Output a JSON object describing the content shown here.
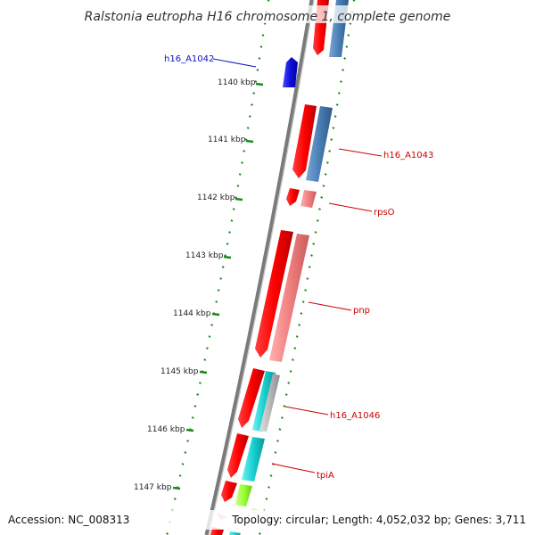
{
  "title": "Ralstonia eutropha H16 chromosome 1, complete genome",
  "accession": "Accession: NC_008313",
  "topology": "Topology: circular; Length: 4,052,032 bp; Genes: 3,711",
  "ticks": [
    {
      "label": "1140 kbp"
    },
    {
      "label": "1141 kbp"
    },
    {
      "label": "1142 kbp"
    },
    {
      "label": "1143 kbp"
    },
    {
      "label": "1144 kbp"
    },
    {
      "label": "1145 kbp"
    },
    {
      "label": "1146 kbp"
    },
    {
      "label": "1147 kbp"
    }
  ],
  "gene_labels": [
    {
      "name": "h16_A1042",
      "color": "#1010cc"
    },
    {
      "name": "h16_A1043",
      "color": "#cc0000"
    },
    {
      "name": "rpsO",
      "color": "#cc0000"
    },
    {
      "name": "pnp",
      "color": "#cc0000"
    },
    {
      "name": "h16_A1046",
      "color": "#cc0000"
    },
    {
      "name": "tpiA",
      "color": "#cc0000"
    }
  ],
  "colors": {
    "backbone": "#808080",
    "gene_red": "#ff0000",
    "gene_blue": "#1010dd",
    "cds_steelblue": "#4a7fb5",
    "cds_salmon": "#f08080",
    "cds_cyan": "#18d0d0",
    "cds_lime": "#99ff33",
    "cds_gray": "#b8b8b8",
    "tick_green": "#1a8c1a"
  }
}
